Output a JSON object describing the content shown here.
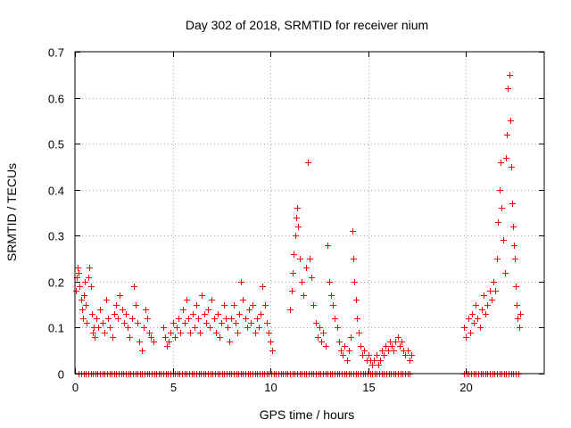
{
  "chart_data": {
    "type": "scatter",
    "title": "Day 302 of 2018, SRMTID for receiver nium",
    "xlabel": "GPS time / hours",
    "ylabel": "SRMTID / TECUs",
    "xlim": [
      0,
      24
    ],
    "ylim": [
      0,
      0.7
    ],
    "xticks": [
      0,
      5,
      10,
      15,
      20
    ],
    "xtick_labels": [
      "0",
      "5",
      "10",
      "15",
      "20"
    ],
    "yticks": [
      0,
      0.1,
      0.2,
      0.3,
      0.4,
      0.5,
      0.6,
      0.7
    ],
    "ytick_labels": [
      "0",
      "0.1",
      "0.2",
      "0.3",
      "0.4",
      "0.5",
      "0.6",
      "0.7"
    ],
    "grid": true,
    "marker": "+",
    "color": "#ff0000",
    "series": [
      {
        "name": "SRMTID",
        "points": [
          [
            0.05,
            0.18
          ],
          [
            0.1,
            0.21
          ],
          [
            0.15,
            0.23
          ],
          [
            0.2,
            0.22
          ],
          [
            0.25,
            0.19
          ],
          [
            0.3,
            0.16
          ],
          [
            0.35,
            0.14
          ],
          [
            0.4,
            0.12
          ],
          [
            0.45,
            0.17
          ],
          [
            0.5,
            0.2
          ],
          [
            0.55,
            0.15
          ],
          [
            0.6,
            0.11
          ],
          [
            0.7,
            0.21
          ],
          [
            0.75,
            0.23
          ],
          [
            0.8,
            0.19
          ],
          [
            0.85,
            0.13
          ],
          [
            0.9,
            0.09
          ],
          [
            0.95,
            0.1
          ],
          [
            1.0,
            0.08
          ],
          [
            1.1,
            0.12
          ],
          [
            1.2,
            0.1
          ],
          [
            1.3,
            0.14
          ],
          [
            1.4,
            0.11
          ],
          [
            1.5,
            0.09
          ],
          [
            1.6,
            0.16
          ],
          [
            1.7,
            0.12
          ],
          [
            1.8,
            0.1
          ],
          [
            1.9,
            0.08
          ],
          [
            2.0,
            0.13
          ],
          [
            2.1,
            0.15
          ],
          [
            2.2,
            0.12
          ],
          [
            2.3,
            0.17
          ],
          [
            2.4,
            0.14
          ],
          [
            2.5,
            0.11
          ],
          [
            2.6,
            0.13
          ],
          [
            2.7,
            0.1
          ],
          [
            2.8,
            0.08
          ],
          [
            2.9,
            0.12
          ],
          [
            3.0,
            0.19
          ],
          [
            3.1,
            0.15
          ],
          [
            3.2,
            0.11
          ],
          [
            3.3,
            0.07
          ],
          [
            3.4,
            0.05
          ],
          [
            3.5,
            0.1
          ],
          [
            3.6,
            0.14
          ],
          [
            3.7,
            0.12
          ],
          [
            3.8,
            0.09
          ],
          [
            3.9,
            0.08
          ],
          [
            4.0,
            0.07
          ],
          [
            4.5,
            0.1
          ],
          [
            4.6,
            0.08
          ],
          [
            4.7,
            0.06
          ],
          [
            4.8,
            0.07
          ],
          [
            4.9,
            0.09
          ],
          [
            5.0,
            0.11
          ],
          [
            5.1,
            0.08
          ],
          [
            5.2,
            0.1
          ],
          [
            5.3,
            0.12
          ],
          [
            5.4,
            0.09
          ],
          [
            5.5,
            0.14
          ],
          [
            5.6,
            0.11
          ],
          [
            5.7,
            0.16
          ],
          [
            5.8,
            0.12
          ],
          [
            5.9,
            0.09
          ],
          [
            6.0,
            0.13
          ],
          [
            6.1,
            0.1
          ],
          [
            6.2,
            0.15
          ],
          [
            6.3,
            0.12
          ],
          [
            6.4,
            0.09
          ],
          [
            6.5,
            0.17
          ],
          [
            6.6,
            0.13
          ],
          [
            6.7,
            0.11
          ],
          [
            6.8,
            0.14
          ],
          [
            6.9,
            0.1
          ],
          [
            7.0,
            0.16
          ],
          [
            7.1,
            0.12
          ],
          [
            7.2,
            0.09
          ],
          [
            7.3,
            0.13
          ],
          [
            7.4,
            0.08
          ],
          [
            7.5,
            0.11
          ],
          [
            7.6,
            0.15
          ],
          [
            7.7,
            0.12
          ],
          [
            7.8,
            0.1
          ],
          [
            7.9,
            0.07
          ],
          [
            8.0,
            0.12
          ],
          [
            8.1,
            0.15
          ],
          [
            8.2,
            0.11
          ],
          [
            8.3,
            0.09
          ],
          [
            8.4,
            0.13
          ],
          [
            8.5,
            0.2
          ],
          [
            8.6,
            0.16
          ],
          [
            8.7,
            0.12
          ],
          [
            8.8,
            0.1
          ],
          [
            8.9,
            0.14
          ],
          [
            9.0,
            0.11
          ],
          [
            9.1,
            0.15
          ],
          [
            9.2,
            0.09
          ],
          [
            9.3,
            0.12
          ],
          [
            9.4,
            0.1
          ],
          [
            9.5,
            0.13
          ],
          [
            9.6,
            0.19
          ],
          [
            9.7,
            0.15
          ],
          [
            9.8,
            0.11
          ],
          [
            9.9,
            0.09
          ],
          [
            10.0,
            0.07
          ],
          [
            10.1,
            0.05
          ],
          [
            11.0,
            0.14
          ],
          [
            11.1,
            0.18
          ],
          [
            11.15,
            0.22
          ],
          [
            11.2,
            0.26
          ],
          [
            11.25,
            0.3
          ],
          [
            11.3,
            0.34
          ],
          [
            11.35,
            0.36
          ],
          [
            11.4,
            0.32
          ],
          [
            11.5,
            0.25
          ],
          [
            11.6,
            0.2
          ],
          [
            11.7,
            0.17
          ],
          [
            11.8,
            0.23
          ],
          [
            11.9,
            0.46
          ],
          [
            12.0,
            0.25
          ],
          [
            12.1,
            0.21
          ],
          [
            12.2,
            0.15
          ],
          [
            12.3,
            0.11
          ],
          [
            12.4,
            0.08
          ],
          [
            12.5,
            0.1
          ],
          [
            12.6,
            0.07
          ],
          [
            12.7,
            0.09
          ],
          [
            12.8,
            0.06
          ],
          [
            12.9,
            0.28
          ],
          [
            13.0,
            0.2
          ],
          [
            13.1,
            0.17
          ],
          [
            13.2,
            0.15
          ],
          [
            13.3,
            0.12
          ],
          [
            13.4,
            0.1
          ],
          [
            13.5,
            0.07
          ],
          [
            13.6,
            0.05
          ],
          [
            13.7,
            0.04
          ],
          [
            13.8,
            0.06
          ],
          [
            13.9,
            0.03
          ],
          [
            14.0,
            0.05
          ],
          [
            14.1,
            0.08
          ],
          [
            14.2,
            0.31
          ],
          [
            14.25,
            0.25
          ],
          [
            14.3,
            0.2
          ],
          [
            14.35,
            0.16
          ],
          [
            14.4,
            0.12
          ],
          [
            14.5,
            0.09
          ],
          [
            14.6,
            0.06
          ],
          [
            14.7,
            0.04
          ],
          [
            14.8,
            0.05
          ],
          [
            14.9,
            0.03
          ],
          [
            15.0,
            0.04
          ],
          [
            15.1,
            0.03
          ],
          [
            15.2,
            0.02
          ],
          [
            15.3,
            0.03
          ],
          [
            15.4,
            0.04
          ],
          [
            15.5,
            0.02
          ],
          [
            15.6,
            0.03
          ],
          [
            15.7,
            0.05
          ],
          [
            15.8,
            0.04
          ],
          [
            15.9,
            0.06
          ],
          [
            16.0,
            0.05
          ],
          [
            16.1,
            0.07
          ],
          [
            16.2,
            0.06
          ],
          [
            16.3,
            0.05
          ],
          [
            16.4,
            0.07
          ],
          [
            16.5,
            0.08
          ],
          [
            16.6,
            0.06
          ],
          [
            16.7,
            0.07
          ],
          [
            16.8,
            0.05
          ],
          [
            16.9,
            0.04
          ],
          [
            17.0,
            0.05
          ],
          [
            17.1,
            0.03
          ],
          [
            17.2,
            0.04
          ],
          [
            19.9,
            0.1
          ],
          [
            20.0,
            0.08
          ],
          [
            20.1,
            0.12
          ],
          [
            20.2,
            0.09
          ],
          [
            20.3,
            0.13
          ],
          [
            20.4,
            0.11
          ],
          [
            20.5,
            0.15
          ],
          [
            20.6,
            0.12
          ],
          [
            20.7,
            0.1
          ],
          [
            20.8,
            0.14
          ],
          [
            20.9,
            0.17
          ],
          [
            21.0,
            0.13
          ],
          [
            21.1,
            0.15
          ],
          [
            21.2,
            0.18
          ],
          [
            21.3,
            0.16
          ],
          [
            21.4,
            0.2
          ],
          [
            21.5,
            0.18
          ],
          [
            21.6,
            0.25
          ],
          [
            21.65,
            0.33
          ],
          [
            21.7,
            0.4
          ],
          [
            21.75,
            0.46
          ],
          [
            21.8,
            0.36
          ],
          [
            21.9,
            0.29
          ],
          [
            22.0,
            0.22
          ],
          [
            22.05,
            0.47
          ],
          [
            22.1,
            0.52
          ],
          [
            22.15,
            0.62
          ],
          [
            22.2,
            0.65
          ],
          [
            22.25,
            0.55
          ],
          [
            22.3,
            0.45
          ],
          [
            22.35,
            0.37
          ],
          [
            22.4,
            0.32
          ],
          [
            22.45,
            0.28
          ],
          [
            22.5,
            0.25
          ],
          [
            22.55,
            0.19
          ],
          [
            22.6,
            0.15
          ],
          [
            22.65,
            0.12
          ],
          [
            22.7,
            0.1
          ],
          [
            22.75,
            0.13
          ]
        ]
      },
      {
        "name": "zero-baseline",
        "segments": [
          [
            0.2,
            17.2
          ],
          [
            19.9,
            22.7
          ]
        ],
        "step": 0.12,
        "y": 0
      }
    ]
  }
}
